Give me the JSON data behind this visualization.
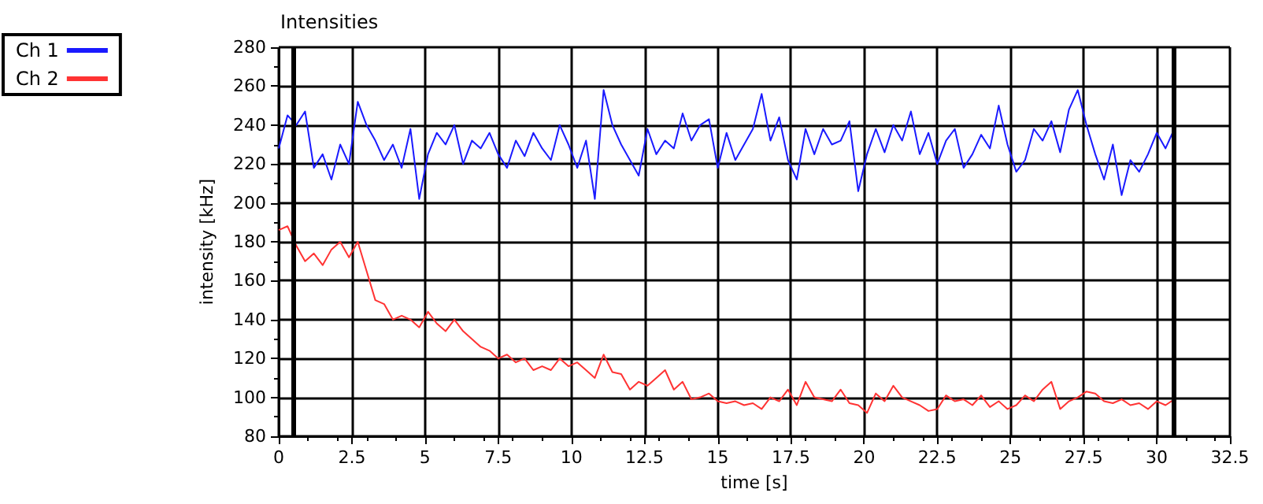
{
  "chart_data": {
    "type": "line",
    "title": "Intensities",
    "xlabel": "time [s]",
    "ylabel": "intensity [kHz]",
    "x": [
      0,
      0.3,
      0.6,
      0.9,
      1.2,
      1.5,
      1.8,
      2.1,
      2.4,
      2.7,
      3,
      3.3,
      3.6,
      3.9,
      4.2,
      4.5,
      4.8,
      5.1,
      5.4,
      5.7,
      6,
      6.3,
      6.6,
      6.9,
      7.2,
      7.5,
      7.8,
      8.1,
      8.4,
      8.7,
      9,
      9.3,
      9.6,
      9.9,
      10.2,
      10.5,
      10.8,
      11.1,
      11.4,
      11.7,
      12,
      12.3,
      12.6,
      12.9,
      13.2,
      13.5,
      13.8,
      14.1,
      14.4,
      14.7,
      15,
      15.3,
      15.6,
      15.9,
      16.2,
      16.5,
      16.8,
      17.1,
      17.4,
      17.7,
      18,
      18.3,
      18.6,
      18.9,
      19.2,
      19.5,
      19.8,
      20.1,
      20.4,
      20.7,
      21,
      21.3,
      21.6,
      21.9,
      22.2,
      22.5,
      22.8,
      23.1,
      23.4,
      23.7,
      24,
      24.3,
      24.6,
      24.9,
      25.2,
      25.5,
      25.8,
      26.1,
      26.4,
      26.7,
      27,
      27.3,
      27.6,
      27.9,
      28.2,
      28.5,
      28.8,
      29.1,
      29.4,
      29.7,
      30,
      30.3,
      30.6
    ],
    "series": [
      {
        "name": "Ch 1",
        "color": "#1a1aff",
        "values": [
          228,
          245,
          240,
          247,
          218,
          225,
          212,
          230,
          220,
          252,
          240,
          232,
          222,
          230,
          218,
          238,
          202,
          225,
          236,
          230,
          240,
          220,
          232,
          228,
          236,
          225,
          218,
          232,
          224,
          236,
          228,
          222,
          240,
          230,
          218,
          232,
          202,
          258,
          240,
          230,
          222,
          214,
          238,
          225,
          232,
          228,
          246,
          232,
          240,
          243,
          218,
          236,
          222,
          230,
          238,
          256,
          232,
          244,
          222,
          212,
          238,
          225,
          238,
          230,
          232,
          242,
          206,
          225,
          238,
          226,
          240,
          232,
          247,
          225,
          236,
          220,
          232,
          238,
          218,
          225,
          235,
          228,
          250,
          230,
          216,
          222,
          238,
          232,
          242,
          226,
          248,
          258,
          240,
          225,
          212,
          230,
          204,
          222,
          216,
          225,
          236,
          228,
          238
        ]
      },
      {
        "name": "Ch 2",
        "color": "#ff3333",
        "values": [
          186,
          188,
          178,
          170,
          174,
          168,
          176,
          180,
          172,
          180,
          165,
          150,
          148,
          140,
          142,
          140,
          136,
          144,
          138,
          134,
          140,
          134,
          130,
          126,
          124,
          120,
          122,
          118,
          120,
          114,
          116,
          114,
          120,
          116,
          118,
          114,
          110,
          122,
          113,
          112,
          104,
          108,
          106,
          110,
          114,
          104,
          108,
          99,
          100,
          102,
          98,
          97,
          98,
          96,
          97,
          94,
          100,
          98,
          104,
          96,
          108,
          100,
          99,
          98,
          104,
          97,
          96,
          92,
          102,
          98,
          106,
          100,
          98,
          96,
          93,
          94,
          101,
          98,
          99,
          96,
          101,
          95,
          98,
          94,
          96,
          101,
          98,
          104,
          108,
          94,
          98,
          100,
          103,
          102,
          98,
          97,
          99,
          96,
          97,
          94,
          98,
          96,
          99
        ]
      }
    ],
    "xlim": [
      0,
      32.5
    ],
    "xticks": [
      0,
      2.5,
      5,
      7.5,
      10,
      12.5,
      15,
      17.5,
      20,
      22.5,
      25,
      27.5,
      30,
      32.5
    ],
    "ylim": [
      80,
      280
    ],
    "yticks": [
      80,
      100,
      120,
      140,
      160,
      180,
      200,
      220,
      240,
      260,
      280
    ],
    "ref_lines": [
      {
        "axis": "x",
        "value": 0.5,
        "color": "#000000"
      },
      {
        "axis": "x",
        "value": 30.6,
        "color": "#000000"
      }
    ],
    "grid": true,
    "legend": "top left",
    "marker": "none",
    "line_style": "solid"
  }
}
